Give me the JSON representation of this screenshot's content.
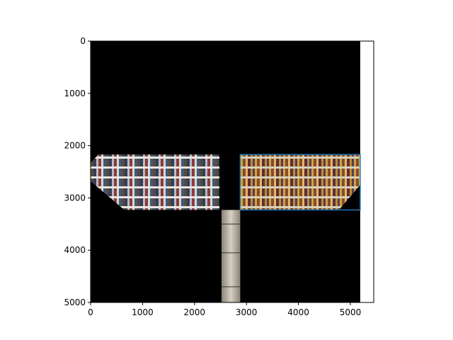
{
  "chart_data": {
    "type": "image-plot",
    "title": "",
    "xlabel": "",
    "ylabel": "",
    "xlim": [
      0,
      5450
    ],
    "ylim": [
      5000,
      0
    ],
    "y_inverted": true,
    "grid": false,
    "x_ticks": [
      0,
      1000,
      2000,
      3000,
      4000,
      5000
    ],
    "y_ticks": [
      0,
      1000,
      2000,
      3000,
      4000,
      5000
    ],
    "image_extent": [
      0,
      5190,
      5000,
      0
    ],
    "panels": [
      {
        "name": "left-panorama",
        "polygon": [
          [
            0,
            2330
          ],
          [
            150,
            2170
          ],
          [
            2480,
            2170
          ],
          [
            2480,
            3230
          ],
          [
            650,
            3230
          ],
          [
            0,
            2680
          ]
        ]
      },
      {
        "name": "bottom-strip",
        "polygon": [
          [
            2520,
            3230
          ],
          [
            2880,
            3230
          ],
          [
            2880,
            5000
          ],
          [
            2520,
            5000
          ]
        ]
      },
      {
        "name": "right-panorama",
        "polygon": [
          [
            2880,
            2170
          ],
          [
            5190,
            2170
          ],
          [
            5190,
            2750
          ],
          [
            4780,
            3230
          ],
          [
            2880,
            3230
          ]
        ]
      }
    ],
    "highlight_box": {
      "x0": 2880,
      "x1": 5190,
      "y0": 2170,
      "y1": 3230,
      "color": "#1f77b4"
    }
  }
}
